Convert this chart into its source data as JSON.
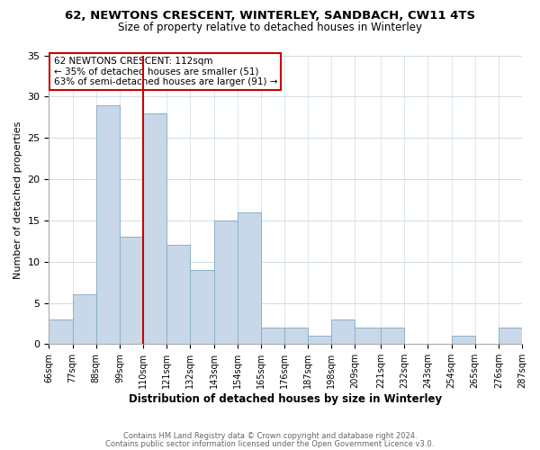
{
  "title": "62, NEWTONS CRESCENT, WINTERLEY, SANDBACH, CW11 4TS",
  "subtitle": "Size of property relative to detached houses in Winterley",
  "xlabel": "Distribution of detached houses by size in Winterley",
  "ylabel": "Number of detached properties",
  "bar_color": "#c8d8e8",
  "bar_edge_color": "#8ab0c8",
  "marker_line_color": "#cc0000",
  "marker_value": 110,
  "bin_edges": [
    66,
    77,
    88,
    99,
    110,
    121,
    132,
    143,
    154,
    165,
    176,
    187,
    198,
    209,
    221,
    232,
    243,
    254,
    265,
    276,
    287
  ],
  "counts": [
    3,
    6,
    29,
    13,
    28,
    12,
    9,
    15,
    16,
    2,
    2,
    1,
    3,
    2,
    2,
    0,
    0,
    1,
    0,
    2
  ],
  "tick_labels": [
    "66sqm",
    "77sqm",
    "88sqm",
    "99sqm",
    "110sqm",
    "121sqm",
    "132sqm",
    "143sqm",
    "154sqm",
    "165sqm",
    "176sqm",
    "187sqm",
    "198sqm",
    "209sqm",
    "221sqm",
    "232sqm",
    "243sqm",
    "254sqm",
    "265sqm",
    "276sqm",
    "287sqm"
  ],
  "annotation_title": "62 NEWTONS CRESCENT: 112sqm",
  "annotation_line1": "← 35% of detached houses are smaller (51)",
  "annotation_line2": "63% of semi-detached houses are larger (91) →",
  "ylim": [
    0,
    35
  ],
  "yticks": [
    0,
    5,
    10,
    15,
    20,
    25,
    30,
    35
  ],
  "footnote1": "Contains HM Land Registry data © Crown copyright and database right 2024.",
  "footnote2": "Contains public sector information licensed under the Open Government Licence v3.0.",
  "grid_color": "#d0dce8"
}
